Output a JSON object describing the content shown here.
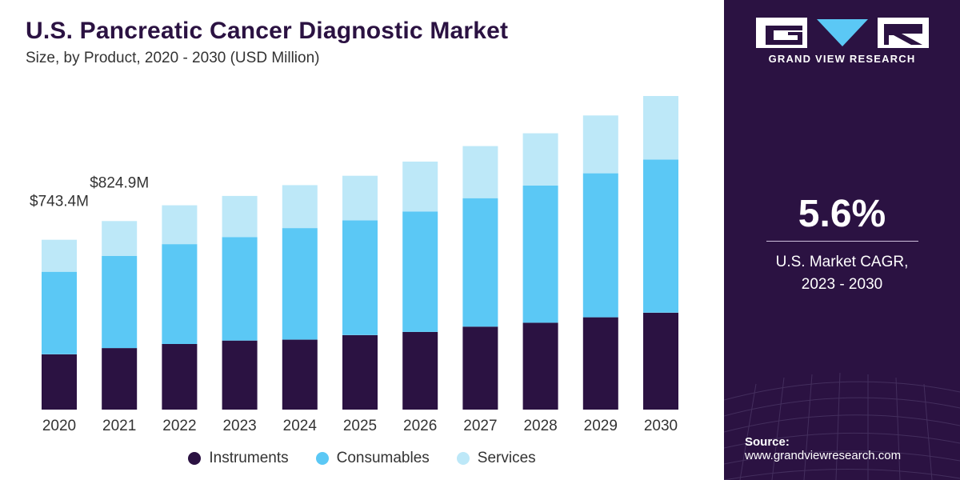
{
  "header": {
    "title": "U.S. Pancreatic Cancer Diagnostic Market",
    "subtitle": "Size, by Product, 2020 - 2030 (USD Million)"
  },
  "brand": {
    "name": "GRAND VIEW RESEARCH",
    "logo_icon": "gvr-logo"
  },
  "cagr": {
    "value": "5.6%",
    "label_line1": "U.S. Market CAGR,",
    "label_line2": "2023 - 2030"
  },
  "source": {
    "label": "Source:",
    "url": "www.grandviewresearch.com"
  },
  "colors": {
    "instruments": "#2b1242",
    "consumables": "#5bc8f5",
    "services": "#bde8f8",
    "panel": "#2b1242"
  },
  "chart_data": {
    "type": "bar",
    "stacked": true,
    "categories": [
      "2020",
      "2021",
      "2022",
      "2023",
      "2024",
      "2025",
      "2026",
      "2027",
      "2028",
      "2029",
      "2030"
    ],
    "series": [
      {
        "name": "Instruments",
        "values": [
          242,
          269,
          287,
          302,
          306,
          326,
          340,
          363,
          380,
          404,
          424
        ]
      },
      {
        "name": "Consumables",
        "values": [
          361,
          403,
          437,
          453,
          488,
          502,
          527,
          562,
          600,
          630,
          670
        ]
      },
      {
        "name": "Services",
        "values": [
          140,
          153,
          170,
          180,
          188,
          195,
          218,
          228,
          229,
          253,
          278
        ]
      }
    ],
    "annotations": [
      {
        "category": "2020",
        "text": "$743.4M"
      },
      {
        "category": "2021",
        "text": "$824.9M"
      }
    ],
    "ylim": [
      0,
      1400
    ],
    "grid": false,
    "legend_position": "bottom"
  }
}
